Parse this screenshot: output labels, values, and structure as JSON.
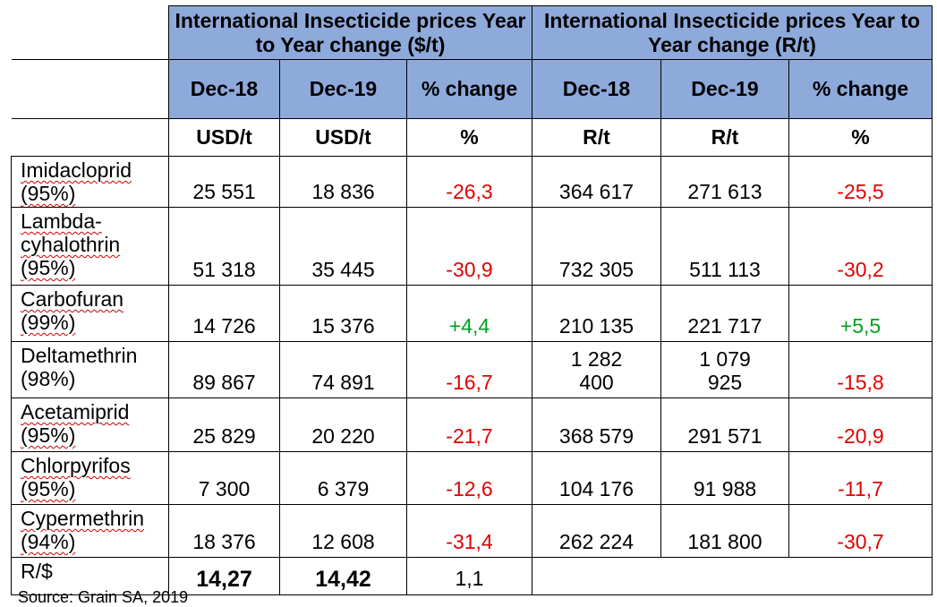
{
  "header": {
    "group_usd": "International Insecticide prices Year to Year change  ($/t)",
    "group_zar": "International Insecticide prices Year to Year change (R/t)"
  },
  "columns": {
    "usd": [
      "Dec-18",
      "Dec-19",
      "% change"
    ],
    "zar": [
      "Dec-18",
      "Dec-19",
      "% change"
    ]
  },
  "units": {
    "usd": [
      "USD/t",
      "USD/t",
      "%"
    ],
    "zar": [
      "R/t",
      "R/t",
      "%"
    ]
  },
  "rows": [
    {
      "name": "Imidacloprid (95%)",
      "usd_dec18": "25 551",
      "usd_dec19": "18 836",
      "usd_change": "-26,3",
      "zar_dec18": "364 617",
      "zar_dec19": "271 613",
      "zar_change": "-25,5"
    },
    {
      "name": "Lambda-cyhalothrin (95%)",
      "usd_dec18": "51 318",
      "usd_dec19": "35 445",
      "usd_change": "-30,9",
      "zar_dec18": "732 305",
      "zar_dec19": "511 113",
      "zar_change": "-30,2"
    },
    {
      "name": "Carbofuran (99%)",
      "usd_dec18": "14 726",
      "usd_dec19": "15 376",
      "usd_change": "+4,4",
      "zar_dec18": "210 135",
      "zar_dec19": "221 717",
      "zar_change": "+5,5"
    },
    {
      "name": "Deltamethrin (98%)",
      "usd_dec18": "89 867",
      "usd_dec19": "74 891",
      "usd_change": "-16,7",
      "zar_dec18": "1 282 400",
      "zar_dec19": "1 079 925",
      "zar_change": "-15,8"
    },
    {
      "name": "Acetamiprid (95%)",
      "usd_dec18": "25 829",
      "usd_dec19": "20 220",
      "usd_change": "-21,7",
      "zar_dec18": "368 579",
      "zar_dec19": "291 571",
      "zar_change": "-20,9"
    },
    {
      "name": "Chlorpyrifos (95%)",
      "usd_dec18": "7 300",
      "usd_dec19": "6 379",
      "usd_change": "-12,6",
      "zar_dec18": "104 176",
      "zar_dec19": "91 988",
      "zar_change": "-11,7"
    },
    {
      "name": "Cypermethrin (94%)",
      "usd_dec18": "18 376",
      "usd_dec19": "12 608",
      "usd_change": "-31,4",
      "zar_dec18": "262 224",
      "zar_dec19": "181 800",
      "zar_change": "-30,7"
    }
  ],
  "exchange_rate": {
    "label": "R/$",
    "dec18": "14,27",
    "dec19": "14,42",
    "change": "1,1"
  },
  "source": "Source: Grain SA, 2019",
  "colors": {
    "header_bg": "#8eaadb",
    "negative": "#e00000",
    "positive": "#00a020"
  }
}
